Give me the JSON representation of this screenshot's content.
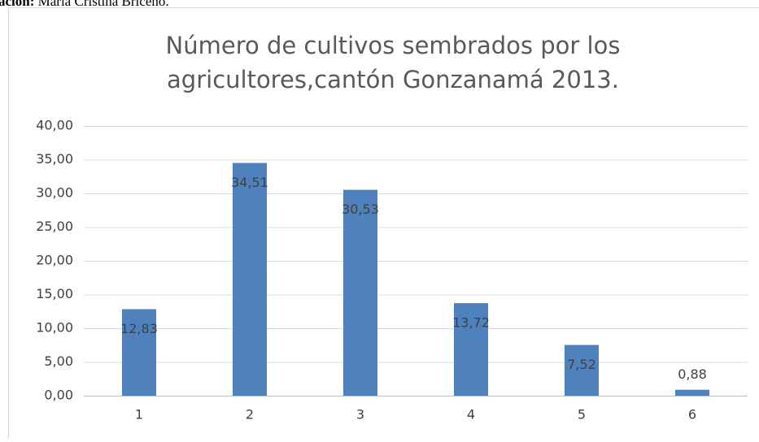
{
  "caption": {
    "bold": "ación:",
    "text": "María Cristina Briceño."
  },
  "chart_data": {
    "type": "bar",
    "title": [
      "Número de cultivos sembrados por los",
      "agricultores,cantón Gonzanamá 2013."
    ],
    "categories": [
      "1",
      "2",
      "3",
      "4",
      "5",
      "6"
    ],
    "values": [
      12.83,
      34.51,
      30.53,
      13.72,
      7.52,
      0.88
    ],
    "value_labels": [
      "12,83",
      "34,51",
      "30,53",
      "13,72",
      "7,52",
      "0,88"
    ],
    "color": "#4f81bd",
    "ylim": [
      0,
      40
    ],
    "yticks": [
      {
        "value": 0,
        "label": "0,00"
      },
      {
        "value": 5,
        "label": "5,00"
      },
      {
        "value": 10,
        "label": "10,00"
      },
      {
        "value": 15,
        "label": "15,00"
      },
      {
        "value": 20,
        "label": "20,00"
      },
      {
        "value": 25,
        "label": "25,00"
      },
      {
        "value": 30,
        "label": "30,00"
      },
      {
        "value": 35,
        "label": "35,00"
      },
      {
        "value": 40,
        "label": "40,00"
      }
    ],
    "grid": true
  }
}
